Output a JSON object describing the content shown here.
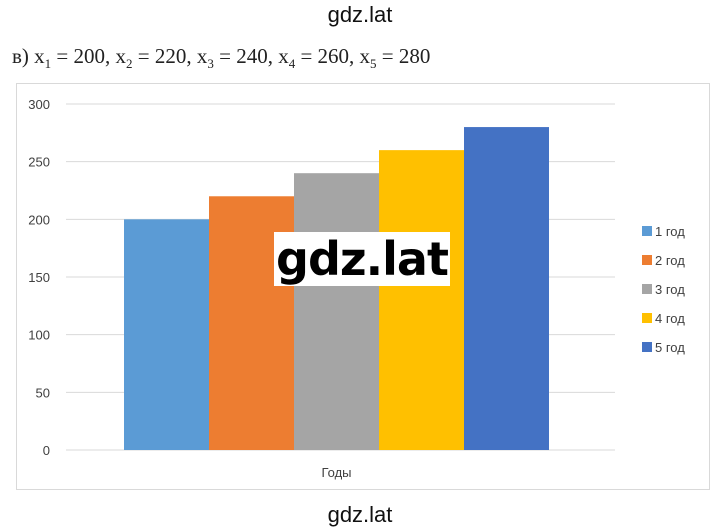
{
  "watermark": {
    "top": "gdz.lat",
    "center": "gdz.lat",
    "bottom": "gdz.lat"
  },
  "caption": {
    "prefix": "в) ",
    "items": [
      {
        "var": "x",
        "sub": "1",
        "value": " = 200"
      },
      {
        "var": "x",
        "sub": "2",
        "value": " = 220"
      },
      {
        "var": "x",
        "sub": "3",
        "value": " = 240"
      },
      {
        "var": "x",
        "sub": "4",
        "value": " = 260"
      },
      {
        "var": "x",
        "sub": "5",
        "value": " = 280"
      }
    ],
    "separator": ", "
  },
  "chart_data": {
    "type": "bar",
    "categories": [
      "Годы"
    ],
    "xlabel": "Годы",
    "ylabel": "",
    "ylim": [
      0,
      300
    ],
    "yticks": [
      0,
      50,
      100,
      150,
      200,
      250,
      300
    ],
    "grid": true,
    "legend_position": "right",
    "series": [
      {
        "name": "1 год",
        "values": [
          200
        ],
        "color": "#5B9BD5"
      },
      {
        "name": "2 год",
        "values": [
          220
        ],
        "color": "#ED7D31"
      },
      {
        "name": "3 год",
        "values": [
          240
        ],
        "color": "#A5A5A5"
      },
      {
        "name": "4 год",
        "values": [
          260
        ],
        "color": "#FFC000"
      },
      {
        "name": "5 год",
        "values": [
          280
        ],
        "color": "#4472C4"
      }
    ]
  }
}
